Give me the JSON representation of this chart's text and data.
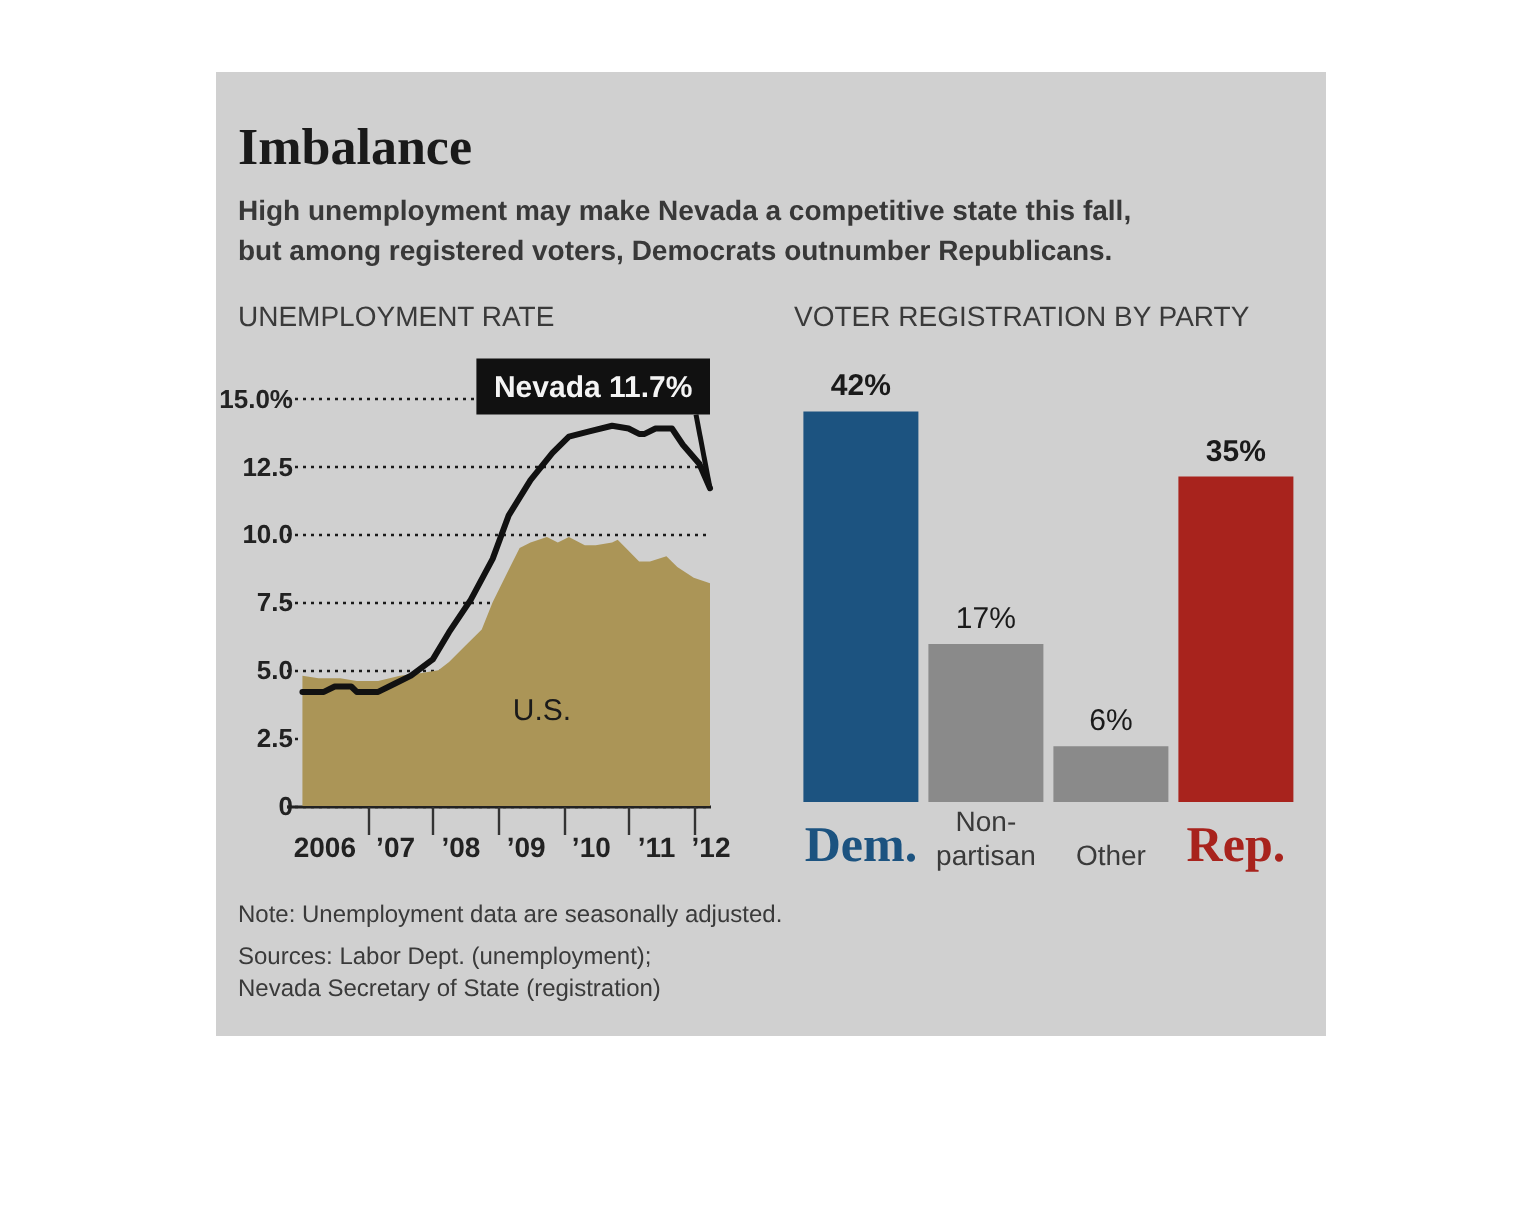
{
  "chart_data": [
    {
      "type": "other",
      "title": "Imbalance",
      "subtitle": "High unemployment may make Nevada a competitive state this fall, but among registered voters, Democrats outnumber Republicans.",
      "annotations": [
        "Note: Unemployment data are seasonally adjusted.",
        "Sources: Labor Dept. (unemployment); Nevada Secretary of State (registration)"
      ]
    },
    {
      "type": "line",
      "title": "UNEMPLOYMENT RATE",
      "xlim": [
        "2005-10",
        "2012-04"
      ],
      "xticks": [
        {
          "value": "2006-05",
          "label": "2006"
        },
        {
          "value": "2007-01",
          "label": null
        },
        {
          "value": "2007-06",
          "label": "’07"
        },
        {
          "value": "2008-01",
          "label": null
        },
        {
          "value": "2008-06",
          "label": "’08"
        },
        {
          "value": "2009-01",
          "label": null
        },
        {
          "value": "2009-06",
          "label": "’09"
        },
        {
          "value": "2010-01",
          "label": null
        },
        {
          "value": "2010-06",
          "label": "’10"
        },
        {
          "value": "2011-01",
          "label": null
        },
        {
          "value": "2011-06",
          "label": "’11"
        },
        {
          "value": "2012-01",
          "label": null
        },
        {
          "value": "2012-04",
          "label": "’12"
        }
      ],
      "ylim": [
        0,
        15
      ],
      "yticks": [
        0,
        2.5,
        {
          "value": 5,
          "label": "5.0"
        },
        7.5,
        {
          "value": 10,
          "label": "10.0"
        },
        12.5,
        {
          "value": 15,
          "label": "15.0%"
        }
      ],
      "grid": "y",
      "series": [
        {
          "name": "U.S.",
          "type": "area",
          "color": "#ab9557",
          "x": [
            "2006-01",
            "2006-04",
            "2006-08",
            "2006-11",
            "2007-03",
            "2007-07",
            "2007-11",
            "2008-02",
            "2008-04",
            "2008-07",
            "2008-10",
            "2008-12",
            "2009-03",
            "2009-05",
            "2009-07",
            "2009-10",
            "2009-12",
            "2010-02",
            "2010-05",
            "2010-07",
            "2010-10",
            "2010-11",
            "2011-01",
            "2011-03",
            "2011-05",
            "2011-08",
            "2011-10",
            "2012-01",
            "2012-04"
          ],
          "values": [
            4.8,
            4.7,
            4.7,
            4.6,
            4.6,
            4.8,
            4.9,
            5.0,
            5.3,
            5.9,
            6.5,
            7.5,
            8.7,
            9.5,
            9.7,
            9.9,
            9.7,
            9.9,
            9.6,
            9.6,
            9.7,
            9.8,
            9.4,
            9.0,
            9.0,
            9.2,
            8.8,
            8.4,
            8.2
          ]
        },
        {
          "type": "line",
          "color": "#111111",
          "x": [
            "2006-01",
            "2006-05",
            "2006-07",
            "2006-10",
            "2006-11",
            "2007-03",
            "2007-06",
            "2007-09",
            "2008-01",
            "2008-04",
            "2008-08",
            "2008-12",
            "2009-03",
            "2009-07",
            "2009-11",
            "2010-02",
            "2010-06",
            "2010-10",
            "2011-01",
            "2011-03",
            "2011-04",
            "2011-06",
            "2011-09",
            "2011-11",
            "2012-02",
            "2012-04"
          ],
          "values": [
            4.2,
            4.2,
            4.4,
            4.4,
            4.2,
            4.2,
            4.5,
            4.8,
            5.4,
            6.4,
            7.6,
            9.1,
            10.7,
            12.0,
            13.0,
            13.6,
            13.8,
            14.0,
            13.9,
            13.7,
            13.7,
            13.9,
            13.9,
            13.3,
            12.6,
            11.7
          ]
        }
      ],
      "annotations": [
        {
          "text": "Nevada 11.7%",
          "x": "2012-04",
          "y": 11.7
        }
      ]
    },
    {
      "type": "bar",
      "title": "VOTER REGISTRATION BY PARTY",
      "categories": [
        "Dem.",
        "Non-partisan",
        "Other",
        "Rep."
      ],
      "values": [
        42,
        17,
        6,
        35
      ],
      "colors": [
        "#1c5380",
        "#8a8a8a",
        "#8a8a8a",
        "#a8231d"
      ],
      "value_labels": [
        "42%",
        "17%",
        "6%",
        "35%"
      ]
    }
  ]
}
